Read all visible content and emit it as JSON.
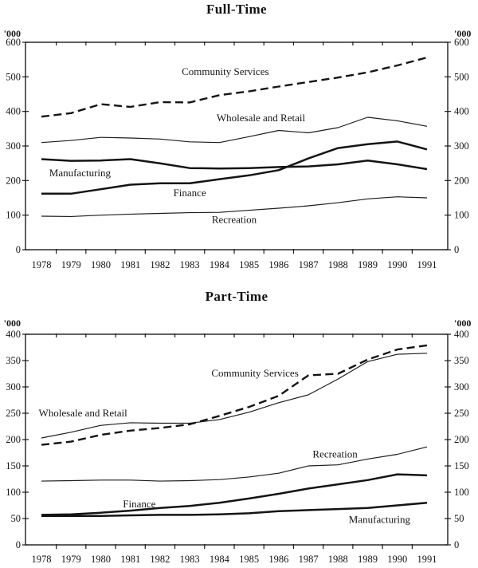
{
  "page": {
    "background": "#ffffff",
    "ink": "#1c1c1c"
  },
  "chart_data": [
    {
      "type": "line",
      "title": "Full-Time",
      "unit_label": "'000",
      "x_labels": [
        "1978",
        "1979",
        "1980",
        "1981",
        "1982",
        "1983",
        "1984",
        "1985",
        "1986",
        "1987",
        "1988",
        "1989",
        "1990",
        "1991"
      ],
      "ylim": [
        0,
        600
      ],
      "yticks": [
        0,
        100,
        200,
        300,
        400,
        500,
        600
      ],
      "grid": false,
      "legend": "inline-series-labels",
      "series": [
        {
          "name": "Community Services",
          "style": "dashed",
          "values": [
            385,
            395,
            421,
            413,
            427,
            426,
            447,
            458,
            472,
            485,
            498,
            513,
            533,
            556
          ],
          "label_anchor": {
            "year": 1984.2,
            "value": 515
          }
        },
        {
          "name": "Wholesale and Retail",
          "style": "thin",
          "values": [
            310,
            316,
            325,
            323,
            320,
            312,
            310,
            327,
            345,
            338,
            353,
            383,
            373,
            357
          ],
          "label_anchor": {
            "year": 1985.4,
            "value": 381
          }
        },
        {
          "name": "Manufacturing",
          "style": "thick",
          "values": [
            262,
            257,
            258,
            262,
            250,
            236,
            235,
            236,
            239,
            241,
            247,
            258,
            247,
            233
          ],
          "label_anchor": {
            "year": 1979.3,
            "value": 221
          }
        },
        {
          "name": "Finance",
          "style": "thick",
          "values": [
            162,
            162,
            175,
            188,
            192,
            192,
            204,
            215,
            230,
            264,
            294,
            305,
            313,
            290
          ],
          "label_anchor": {
            "year": 1983.0,
            "value": 164
          }
        },
        {
          "name": "Recreation",
          "style": "thin",
          "values": [
            97,
            96,
            100,
            103,
            105,
            107,
            108,
            114,
            120,
            127,
            136,
            147,
            153,
            150
          ],
          "label_anchor": {
            "year": 1984.5,
            "value": 87
          }
        }
      ]
    },
    {
      "type": "line",
      "title": "Part-Time",
      "unit_label": "'000",
      "x_labels": [
        "1978",
        "1979",
        "1980",
        "1981",
        "1982",
        "1983",
        "1984",
        "1985",
        "1986",
        "1987",
        "1988",
        "1989",
        "1990",
        "1991"
      ],
      "ylim": [
        0,
        400
      ],
      "yticks": [
        0,
        50,
        100,
        150,
        200,
        250,
        300,
        350,
        400
      ],
      "grid": false,
      "legend": "inline-series-labels",
      "series": [
        {
          "name": "Wholesale and Retail",
          "style": "thin",
          "values": [
            203,
            214,
            227,
            232,
            231,
            231,
            238,
            252,
            270,
            285,
            315,
            348,
            362,
            364
          ],
          "label_anchor": {
            "year": 1979.4,
            "value": 250
          }
        },
        {
          "name": "Community Services",
          "style": "dashed",
          "values": [
            190,
            196,
            209,
            217,
            222,
            229,
            245,
            262,
            283,
            322,
            325,
            352,
            371,
            379
          ],
          "label_anchor": {
            "year": 1985.2,
            "value": 326
          }
        },
        {
          "name": "Recreation",
          "style": "thin",
          "values": [
            121,
            122,
            123,
            123,
            121,
            122,
            124,
            129,
            136,
            150,
            152,
            163,
            172,
            186
          ],
          "label_anchor": {
            "year": 1987.9,
            "value": 172
          }
        },
        {
          "name": "Finance",
          "style": "thick",
          "values": [
            57,
            58,
            61,
            65,
            70,
            74,
            80,
            88,
            97,
            107,
            115,
            123,
            134,
            132
          ],
          "label_anchor": {
            "year": 1981.3,
            "value": 77
          }
        },
        {
          "name": "Manufacturing",
          "style": "thick",
          "values": [
            55,
            55,
            55,
            56,
            57,
            57,
            58,
            60,
            64,
            66,
            68,
            70,
            75,
            80
          ],
          "label_anchor": {
            "year": 1989.4,
            "value": 48
          }
        }
      ]
    }
  ]
}
